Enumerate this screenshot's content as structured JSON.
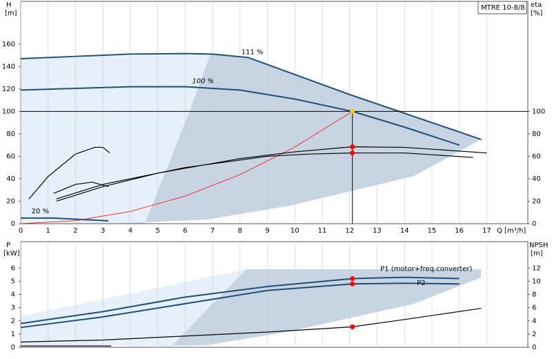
{
  "chart_data": [
    {
      "type": "line",
      "title": "MTRE 10-8/8",
      "y_label": "H",
      "y_unit": "[m]",
      "y2_label": "eta",
      "y2_unit": "[%]",
      "x_label": "Q [m³/h]",
      "xlim": [
        0,
        18.5
      ],
      "ylim": [
        0,
        198
      ],
      "y2lim": [
        0,
        198
      ],
      "xticks": [
        0,
        1,
        2,
        3,
        4,
        5,
        6,
        7,
        8,
        9,
        10,
        11,
        12,
        13,
        14,
        15,
        16,
        17
      ],
      "yticks": [
        0,
        20,
        40,
        60,
        80,
        100,
        120,
        140,
        160
      ],
      "y2ticks": [
        0,
        20,
        40,
        60,
        80,
        100
      ],
      "grid": true,
      "series": [
        {
          "name": "111 %",
          "color": "#1f4e79",
          "x": [
            0,
            2,
            4,
            6,
            7,
            8.3,
            12,
            16.8
          ],
          "values": [
            147,
            149,
            151,
            151.5,
            151,
            148,
            115,
            75
          ]
        },
        {
          "name": "100 %",
          "color": "#1f4e79",
          "x": [
            0,
            2,
            4,
            6,
            8,
            10,
            12.1,
            14,
            16
          ],
          "values": [
            119,
            120.5,
            122,
            122,
            119,
            111,
            100,
            86,
            70
          ]
        },
        {
          "name": "20 %",
          "color": "#1f4e79",
          "x": [
            0,
            1.2,
            3.2
          ],
          "values": [
            5,
            5,
            2.5
          ]
        },
        {
          "color": "#ff0000",
          "x": [
            0,
            2,
            4,
            6,
            8,
            10,
            12.1
          ],
          "values": [
            0,
            2.7,
            10.9,
            24.6,
            43.7,
            68.3,
            100
          ]
        },
        {
          "color": "#000000",
          "axis": "y2",
          "x": [
            1.3,
            3,
            5,
            8,
            10,
            12.1,
            14,
            17
          ],
          "values": [
            20,
            33,
            45,
            58,
            64,
            68.5,
            68,
            63
          ]
        },
        {
          "color": "#000000",
          "axis": "y2",
          "x": [
            1.3,
            3,
            6,
            9,
            10.5,
            12.1,
            14,
            16.5
          ],
          "values": [
            22,
            35,
            50,
            60,
            62,
            63,
            63,
            59
          ]
        },
        {
          "color": "#000000",
          "axis": "y2",
          "x": [
            0.3,
            1,
            2,
            2.7,
            3,
            3.25
          ],
          "values": [
            22,
            42,
            62,
            68,
            68,
            63
          ]
        },
        {
          "color": "#000000",
          "axis": "y2",
          "x": [
            1.2,
            2,
            2.6,
            3.2
          ],
          "values": [
            27,
            35,
            37,
            33
          ]
        }
      ],
      "markers": [
        {
          "x": 12.1,
          "y": 100,
          "color": "#f5c518"
        },
        {
          "x": 12.1,
          "y": 68.5,
          "axis": "y2",
          "color": "#ff0000"
        },
        {
          "x": 12.1,
          "y": 63,
          "axis": "y2",
          "color": "#ff0000"
        }
      ]
    },
    {
      "type": "line",
      "y_label": "P",
      "y_unit": "[kW]",
      "y2_label": "NPSH",
      "y2_unit": "[m]",
      "xlim": [
        0,
        18.5
      ],
      "ylim": [
        0,
        8
      ],
      "y2lim": [
        0,
        16
      ],
      "xticks": [
        0,
        1,
        2,
        3,
        4,
        5,
        6,
        7,
        8,
        9,
        10,
        11,
        12,
        13,
        14,
        15,
        16,
        17
      ],
      "yticks": [
        0,
        1,
        2,
        3,
        4,
        5,
        6
      ],
      "y2ticks": [
        0,
        2,
        4,
        6,
        8,
        10,
        12
      ],
      "grid": true,
      "series": [
        {
          "name": "P1 (motor+freq.converter)",
          "color": "#1f4e79",
          "x": [
            0,
            3,
            6,
            9,
            12.1,
            14,
            16
          ],
          "values": [
            1.8,
            2.7,
            3.8,
            4.6,
            5.2,
            5.3,
            5.2
          ]
        },
        {
          "name": "P2",
          "color": "#1f4e79",
          "x": [
            0,
            3,
            6,
            9,
            12.1,
            14,
            16
          ],
          "values": [
            1.5,
            2.3,
            3.3,
            4.3,
            4.8,
            4.85,
            4.8
          ]
        },
        {
          "color": "#000000",
          "x": [
            0,
            3.3
          ],
          "values": [
            0.1,
            0.1
          ]
        },
        {
          "color": "#000000",
          "axis": "y2",
          "x": [
            0,
            3,
            6,
            9,
            12.1,
            14,
            16.8
          ],
          "values": [
            0.8,
            1.1,
            1.7,
            2.3,
            3.1,
            4.2,
            5.9
          ]
        }
      ],
      "markers": [
        {
          "x": 12.1,
          "y": 5.2,
          "color": "#ff0000"
        },
        {
          "x": 12.1,
          "y": 4.8,
          "color": "#ff0000"
        },
        {
          "x": 12.1,
          "y": 3.1,
          "axis": "y2",
          "color": "#ff0000"
        }
      ]
    }
  ]
}
